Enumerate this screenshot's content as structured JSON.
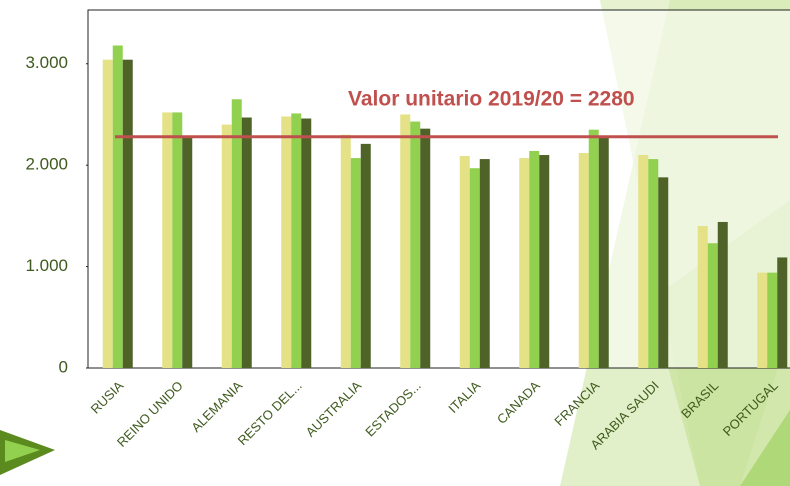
{
  "chart_data": {
    "type": "bar",
    "categories": [
      "RUSIA",
      "REINO UNIDO",
      "ALEMANIA",
      "RESTO DEL...",
      "AUSTRALIA",
      "ESTADOS...",
      "ITALIA",
      "CANADA",
      "FRANCIA",
      "ARABIA SAUDI",
      "BRASIL",
      "PORTUGAL"
    ],
    "series": [
      {
        "color": "#e4e187",
        "values": [
          3040,
          2520,
          2400,
          2480,
          2300,
          2500,
          2090,
          2070,
          2120,
          2100,
          1400,
          940
        ]
      },
      {
        "color": "#92d050",
        "values": [
          3180,
          2520,
          2650,
          2510,
          2070,
          2430,
          1970,
          2140,
          2350,
          2060,
          1230,
          940
        ]
      },
      {
        "color": "#4f6228",
        "values": [
          3040,
          2290,
          2470,
          2460,
          2210,
          2360,
          2060,
          2100,
          2290,
          1880,
          1440,
          1090
        ]
      }
    ],
    "ylim": [
      0,
      3530
    ],
    "yticks": [
      0,
      {
        "value": 1000,
        "label": "1.000"
      },
      {
        "value": 2000,
        "label": "2.000"
      },
      {
        "value": 3000,
        "label": "3.000"
      }
    ],
    "grid": false,
    "reference_line": {
      "value": 2280,
      "label": "Valor unitario 2019/20 = 2280",
      "color": "#c0504d"
    }
  }
}
